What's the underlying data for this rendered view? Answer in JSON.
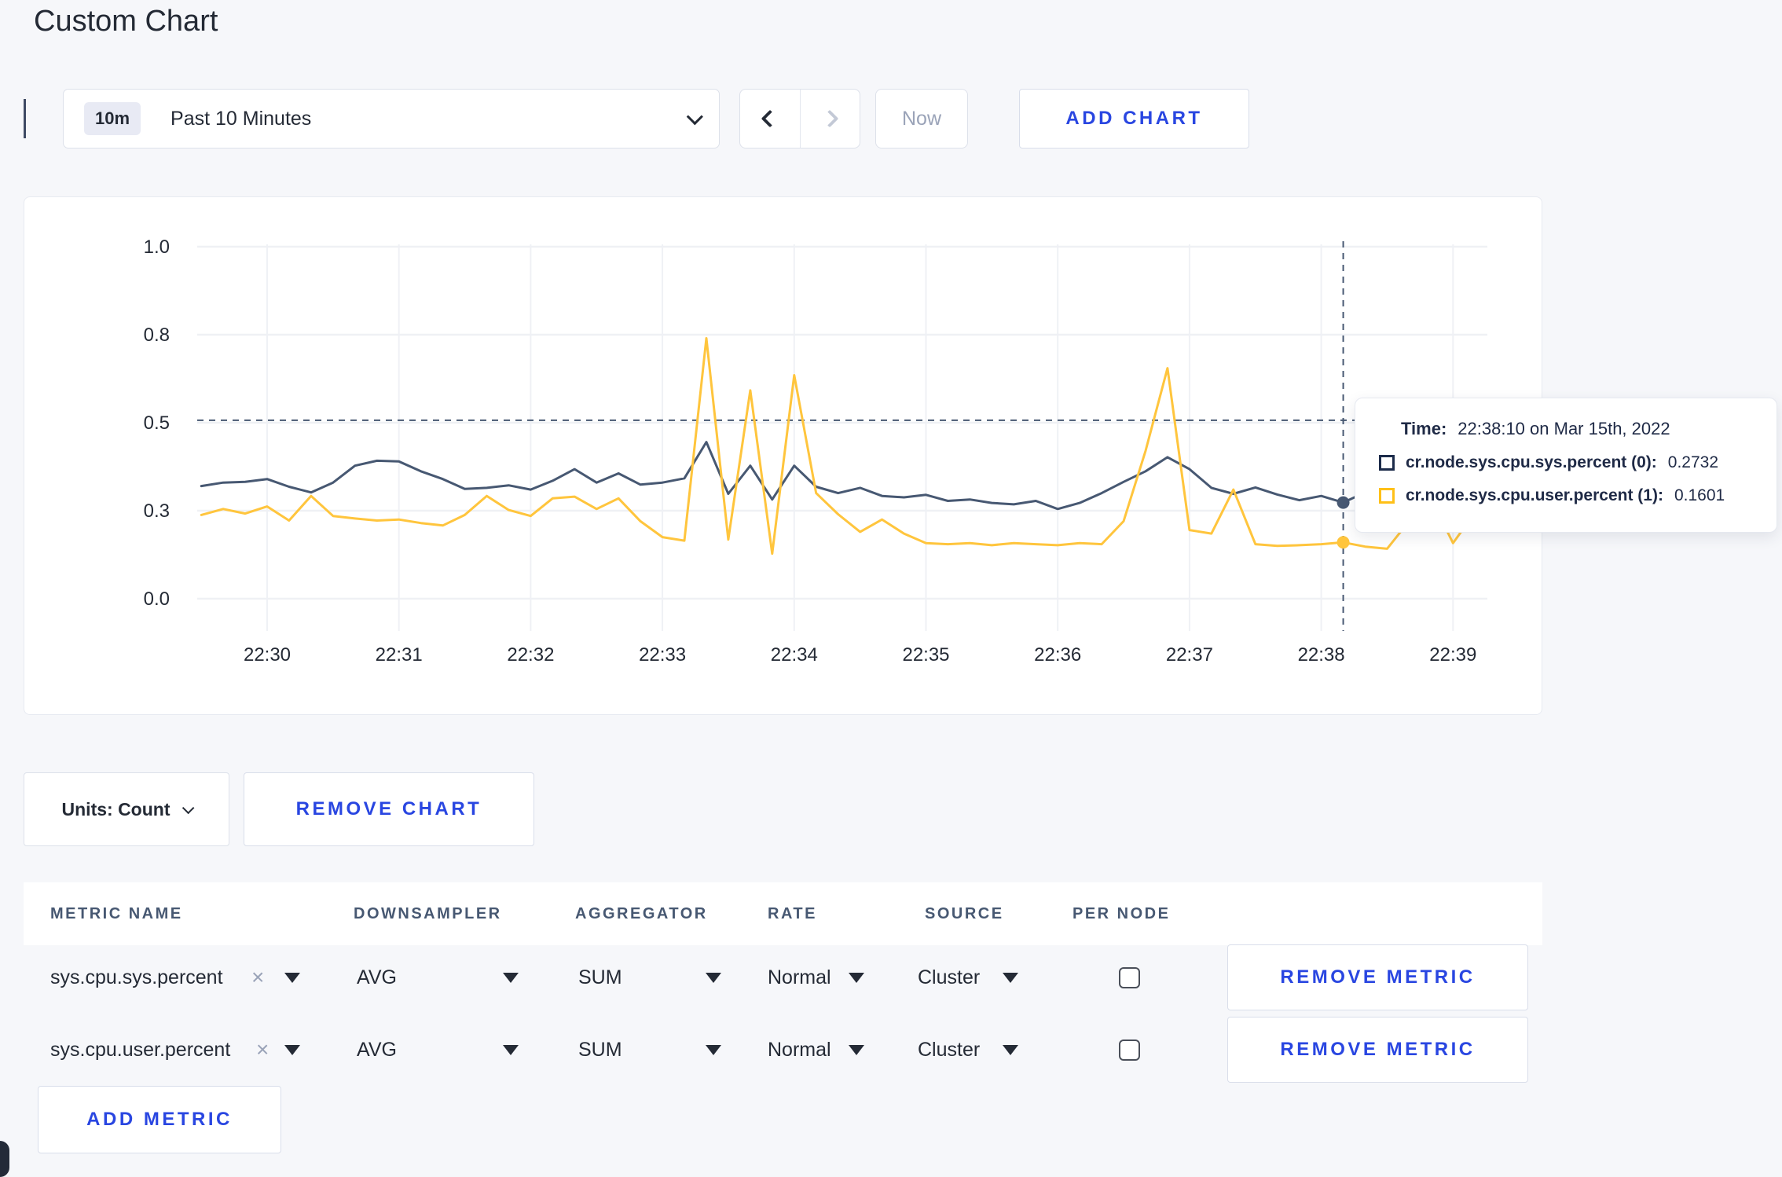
{
  "page": {
    "title": "Custom Chart"
  },
  "toolbar": {
    "time_range": {
      "badge": "10m",
      "label": "Past 10 Minutes"
    },
    "now_label": "Now",
    "add_chart_label": "ADD CHART"
  },
  "chart_data": {
    "type": "line",
    "title": "",
    "xlabel": "",
    "ylabel": "",
    "x_axis": {
      "tick_labels": [
        "22:30",
        "22:31",
        "22:32",
        "22:33",
        "22:34",
        "22:35",
        "22:36",
        "22:37",
        "22:38",
        "22:39"
      ],
      "tick_minutes": [
        0,
        1,
        2,
        3,
        4,
        5,
        6,
        7,
        8,
        9
      ]
    },
    "y_axis": {
      "tick_labels": [
        "1.0",
        "0.8",
        "0.5",
        "0.3",
        "0.0"
      ],
      "tick_values": [
        1.0,
        0.75,
        0.5,
        0.25,
        0.0
      ],
      "range": [
        0,
        1
      ]
    },
    "grid": true,
    "sample_interval_seconds": 10,
    "series": [
      {
        "name": "cr.node.sys.cpu.sys.percent",
        "color": "#475872",
        "start_offset_minutes": -0.5,
        "values": [
          0.32,
          0.33,
          0.332,
          0.34,
          0.318,
          0.302,
          0.33,
          0.378,
          0.392,
          0.39,
          0.362,
          0.34,
          0.312,
          0.315,
          0.322,
          0.31,
          0.335,
          0.368,
          0.33,
          0.356,
          0.324,
          0.33,
          0.342,
          0.445,
          0.298,
          0.378,
          0.282,
          0.378,
          0.318,
          0.3,
          0.315,
          0.292,
          0.288,
          0.295,
          0.278,
          0.282,
          0.272,
          0.268,
          0.278,
          0.255,
          0.272,
          0.3,
          0.332,
          0.362,
          0.402,
          0.368,
          0.315,
          0.298,
          0.316,
          0.296,
          0.28,
          0.292,
          0.2732,
          0.302,
          0.298,
          0.285,
          0.302,
          0.3,
          0.302
        ]
      },
      {
        "name": "cr.node.sys.cpu.user.percent",
        "color": "#FFC53D",
        "start_offset_minutes": -0.5,
        "values": [
          0.238,
          0.255,
          0.242,
          0.262,
          0.222,
          0.292,
          0.235,
          0.228,
          0.222,
          0.225,
          0.215,
          0.208,
          0.238,
          0.292,
          0.252,
          0.235,
          0.285,
          0.29,
          0.255,
          0.285,
          0.22,
          0.175,
          0.165,
          0.74,
          0.168,
          0.592,
          0.128,
          0.635,
          0.3,
          0.24,
          0.19,
          0.225,
          0.185,
          0.158,
          0.155,
          0.158,
          0.152,
          0.158,
          0.155,
          0.152,
          0.158,
          0.155,
          0.22,
          0.42,
          0.655,
          0.195,
          0.185,
          0.31,
          0.155,
          0.15,
          0.152,
          0.155,
          0.1601,
          0.148,
          0.142,
          0.22,
          0.285,
          0.158,
          0.245
        ]
      }
    ],
    "crosshair": {
      "x_offset_minutes": 8.1667,
      "hline_value": 0.507,
      "point_values": [
        0.2732,
        0.1601
      ]
    }
  },
  "tooltip": {
    "time_label": "Time:",
    "time_value": "22:38:10 on Mar 15th, 2022",
    "series": [
      {
        "name": "cr.node.sys.cpu.sys.percent (0):",
        "value": "0.2732",
        "color": "#1c2b4a"
      },
      {
        "name": "cr.node.sys.cpu.user.percent (1):",
        "value": "0.1601",
        "color": "#ffc017"
      }
    ]
  },
  "units": {
    "label": "Units: Count"
  },
  "chart_actions": {
    "remove_chart_label": "REMOVE CHART"
  },
  "metrics_table": {
    "headers": [
      "METRIC NAME",
      "DOWNSAMPLER",
      "AGGREGATOR",
      "RATE",
      "SOURCE",
      "PER NODE"
    ],
    "rows": [
      {
        "metric": "sys.cpu.sys.percent",
        "downsampler": "AVG",
        "aggregator": "SUM",
        "rate": "Normal",
        "source": "Cluster",
        "per_node_checked": false,
        "remove_label": "REMOVE METRIC"
      },
      {
        "metric": "sys.cpu.user.percent",
        "downsampler": "AVG",
        "aggregator": "SUM",
        "rate": "Normal",
        "source": "Cluster",
        "per_node_checked": false,
        "remove_label": "REMOVE METRIC"
      }
    ],
    "add_metric_label": "ADD METRIC"
  },
  "colors": {
    "accent_blue": "#2946e1",
    "line_sys": "#475872",
    "line_user": "#FFC53D",
    "grid": "#eff1f5",
    "page_bg": "#f6f7fa"
  }
}
